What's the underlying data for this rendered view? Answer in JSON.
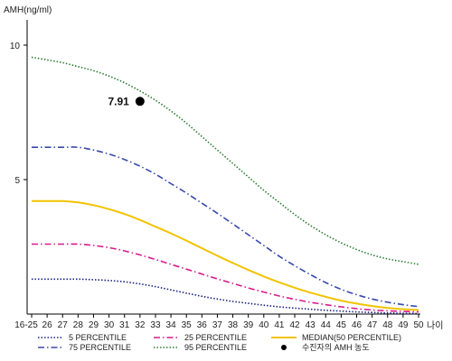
{
  "chart_data": {
    "type": "line",
    "ylabel": "AMH(ng/ml)",
    "xlabel": "나이",
    "ylim": [
      0,
      10
    ],
    "y_ticks": [
      "5",
      "10"
    ],
    "categories": [
      "16-25",
      "26",
      "27",
      "28",
      "29",
      "30",
      "31",
      "32",
      "33",
      "34",
      "35",
      "36",
      "37",
      "38",
      "39",
      "40",
      "41",
      "42",
      "43",
      "44",
      "45",
      "46",
      "47",
      "48",
      "49",
      "50"
    ],
    "series": [
      {
        "name": "5 PERCENTILE",
        "color": "#1a237e",
        "dash": "dotted",
        "values": [
          1.3,
          1.3,
          1.3,
          1.3,
          1.28,
          1.25,
          1.2,
          1.12,
          1.02,
          0.9,
          0.78,
          0.66,
          0.56,
          0.47,
          0.4,
          0.33,
          0.27,
          0.22,
          0.18,
          0.14,
          0.11,
          0.08,
          0.06,
          0.04,
          0.03,
          0.02
        ]
      },
      {
        "name": "75 PERCENTILE",
        "color": "#3949ab",
        "dash": "dashdot",
        "values": [
          6.2,
          6.2,
          6.2,
          6.2,
          6.1,
          5.95,
          5.75,
          5.5,
          5.2,
          4.85,
          4.5,
          4.12,
          3.75,
          3.35,
          2.95,
          2.55,
          2.15,
          1.8,
          1.47,
          1.17,
          0.92,
          0.72,
          0.56,
          0.44,
          0.35,
          0.28
        ]
      },
      {
        "name": "25 PERCENTILE",
        "color": "#d81b8c",
        "dash": "dashdot",
        "values": [
          2.6,
          2.6,
          2.6,
          2.6,
          2.55,
          2.47,
          2.35,
          2.2,
          2.03,
          1.85,
          1.67,
          1.49,
          1.31,
          1.14,
          0.97,
          0.82,
          0.67,
          0.55,
          0.44,
          0.35,
          0.27,
          0.2,
          0.15,
          0.12,
          0.1,
          0.08
        ]
      },
      {
        "name": "95 PERCENTILE",
        "color": "#2e7d32",
        "dash": "dotted",
        "values": [
          9.55,
          9.45,
          9.35,
          9.2,
          9.05,
          8.85,
          8.6,
          8.3,
          7.95,
          7.55,
          7.1,
          6.6,
          6.1,
          5.6,
          5.1,
          4.6,
          4.15,
          3.7,
          3.3,
          2.95,
          2.65,
          2.4,
          2.2,
          2.05,
          1.95,
          1.85
        ]
      },
      {
        "name": "MEDIAN(50 PERCENTILE)",
        "color": "#f2c300",
        "dash": "solid",
        "values": [
          4.2,
          4.2,
          4.2,
          4.15,
          4.05,
          3.9,
          3.72,
          3.5,
          3.25,
          3.0,
          2.73,
          2.45,
          2.17,
          1.9,
          1.64,
          1.4,
          1.18,
          0.98,
          0.8,
          0.64,
          0.5,
          0.39,
          0.3,
          0.23,
          0.18,
          0.15
        ]
      }
    ],
    "point": {
      "x": "32",
      "y": 7.91,
      "label": "7.91",
      "name": "수진자의 AMH 농도",
      "color": "#000000"
    },
    "legend_position": "bottom",
    "grid": false
  }
}
